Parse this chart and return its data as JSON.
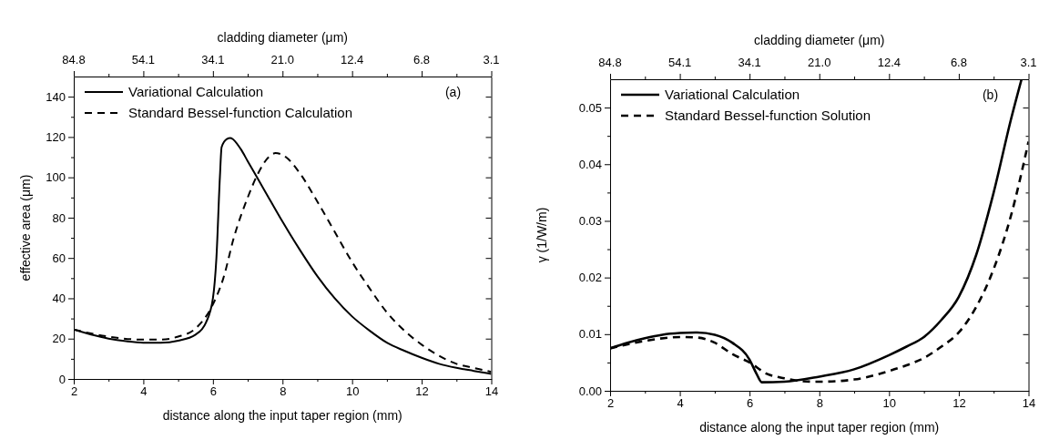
{
  "chart_data": [
    {
      "type": "line",
      "xlabel": "distance along the input taper region (mm)",
      "ylabel": "effective area (μm)",
      "x2label": "cladding diameter (μm)",
      "annotations": [
        "(a)",
        "84.8",
        "54.1",
        "34.1",
        "21.0",
        "12.4",
        "6.8",
        "3.1"
      ],
      "legend": "top left",
      "grid": false,
      "xlim": [
        2,
        14
      ],
      "xticks": [
        2,
        {
          "value": 3,
          "label": null
        },
        4,
        {
          "value": 5,
          "label": null
        },
        6,
        {
          "value": 7,
          "label": null
        },
        8,
        {
          "value": 9,
          "label": null
        },
        10,
        {
          "value": 11,
          "label": null
        },
        12,
        {
          "value": 13,
          "label": null
        },
        14
      ],
      "ylim": [
        0,
        150
      ],
      "yticks": [
        0,
        {
          "value": 10,
          "label": null
        },
        20,
        {
          "value": 30,
          "label": null
        },
        40,
        {
          "value": 50,
          "label": null
        },
        60,
        {
          "value": 70,
          "label": null
        },
        80,
        {
          "value": 90,
          "label": null
        },
        100,
        {
          "value": 110,
          "label": null
        },
        120,
        {
          "value": 130,
          "label": null
        },
        140
      ],
      "series": [
        {
          "name": "Variational Calculation",
          "color": "#000000",
          "line_style": "solid",
          "x": [
            2,
            2.5,
            3,
            3.5,
            4,
            4.5,
            5,
            5.5,
            5.8,
            6,
            6.1,
            6.2,
            6.25,
            6.4,
            6.5,
            6.8,
            7,
            7.5,
            8,
            8.5,
            9,
            9.5,
            10,
            10.5,
            11,
            11.5,
            12,
            12.5,
            13,
            13.5,
            14
          ],
          "values": [
            24.5,
            22,
            20,
            18.7,
            18,
            18,
            19,
            22,
            28,
            40,
            60,
            100,
            115,
            119,
            119.5,
            114,
            108,
            93,
            78,
            64,
            51,
            40,
            31,
            24,
            18,
            14,
            10.5,
            7.5,
            5.5,
            4,
            2.5
          ]
        },
        {
          "name": "Standard Bessel-function Calculation",
          "color": "#000000",
          "line_style": "dashed",
          "x": [
            2,
            3,
            4,
            4.5,
            5,
            5.5,
            6,
            6.3,
            6.6,
            7,
            7.3,
            7.6,
            7.8,
            8.1,
            8.5,
            9,
            9.5,
            10,
            10.5,
            11,
            11.5,
            12,
            12.5,
            13,
            13.5,
            14
          ],
          "values": [
            24.5,
            21,
            19.5,
            19.5,
            21,
            25,
            37,
            50,
            70,
            90,
            102,
            110,
            112,
            110,
            102,
            88,
            73,
            58,
            45,
            33,
            24,
            17,
            11.5,
            7.5,
            5.5,
            3.5
          ]
        }
      ]
    },
    {
      "type": "line",
      "xlabel": "distance along the input taper region (mm)",
      "ylabel": "γ (1/W/m)",
      "x2label": "cladding diameter (μm)",
      "annotations": [
        "(b)",
        "84.8",
        "54.1",
        "34.1",
        "21.0",
        "12.4",
        "6.8",
        "3.1"
      ],
      "legend": "top left",
      "grid": false,
      "xlim": [
        2,
        14
      ],
      "xticks": [
        2,
        {
          "value": 3,
          "label": null
        },
        4,
        {
          "value": 5,
          "label": null
        },
        6,
        {
          "value": 7,
          "label": null
        },
        8,
        {
          "value": 9,
          "label": null
        },
        10,
        {
          "value": 11,
          "label": null
        },
        12,
        {
          "value": 13,
          "label": null
        },
        14
      ],
      "ylim": [
        0,
        0.055
      ],
      "yticks": [
        {
          "value": 0,
          "label": "0.00"
        },
        {
          "value": 0.005,
          "label": null
        },
        {
          "value": 0.01,
          "label": "0.01"
        },
        {
          "value": 0.015,
          "label": null
        },
        {
          "value": 0.02,
          "label": "0.02"
        },
        {
          "value": 0.025,
          "label": null
        },
        {
          "value": 0.03,
          "label": "0.03"
        },
        {
          "value": 0.035,
          "label": null
        },
        {
          "value": 0.04,
          "label": "0.04"
        },
        {
          "value": 0.045,
          "label": null
        },
        {
          "value": 0.05,
          "label": "0.05"
        }
      ],
      "series": [
        {
          "name": "Variational Calculation",
          "color": "#000000",
          "line_style": "solid",
          "x": [
            2,
            2.5,
            3,
            3.5,
            4,
            4.5,
            5,
            5.5,
            6,
            6.2,
            6.35,
            7,
            8,
            9,
            10,
            10.5,
            11,
            11.5,
            12,
            12.5,
            13,
            13.5,
            13.8
          ],
          "values": [
            0.0075,
            0.0085,
            0.0093,
            0.0099,
            0.0102,
            0.0103,
            0.0099,
            0.0085,
            0.0055,
            0.003,
            0.0015,
            0.0016,
            0.0025,
            0.0038,
            0.0063,
            0.0078,
            0.0095,
            0.0125,
            0.0166,
            0.024,
            0.035,
            0.048,
            0.055
          ]
        },
        {
          "name": "Standard Bessel-function Solution",
          "color": "#000000",
          "line_style": "dashed",
          "x": [
            2,
            3,
            4,
            4.5,
            5,
            5.5,
            6,
            6.5,
            7,
            7.5,
            8,
            9,
            10,
            10.5,
            11,
            11.5,
            12,
            12.5,
            13,
            13.5,
            14
          ],
          "values": [
            0.0075,
            0.0088,
            0.0095,
            0.0094,
            0.0085,
            0.0065,
            0.005,
            0.003,
            0.0022,
            0.0017,
            0.0016,
            0.002,
            0.0035,
            0.0045,
            0.0058,
            0.0078,
            0.0103,
            0.0148,
            0.0215,
            0.031,
            0.044
          ]
        }
      ]
    }
  ]
}
